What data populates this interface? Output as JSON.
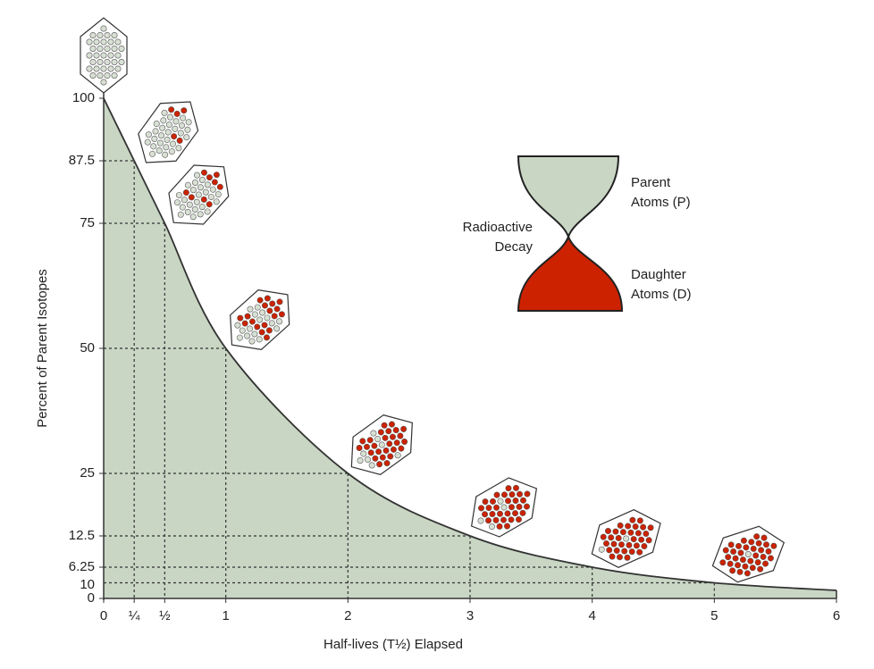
{
  "chart_data": {
    "type": "area",
    "x": [
      0,
      0.25,
      0.5,
      1,
      2,
      3,
      4,
      5,
      6
    ],
    "values": [
      100,
      87.5,
      75,
      50,
      25,
      12.5,
      6.25,
      3.125,
      1.6
    ],
    "color": "#c9d6c4",
    "xlim": [
      0,
      6
    ],
    "ylim": [
      0,
      100
    ],
    "xticks": [
      0,
      {
        "value": 0.25,
        "label": "¼"
      },
      {
        "value": 0.5,
        "label": "½"
      },
      1,
      2,
      3,
      4,
      5,
      6
    ],
    "yticks": [
      0,
      6.25,
      12.5,
      25,
      50,
      75,
      87.5,
      100
    ],
    "x_label": "Half-lives (T½) Elapsed",
    "y_label": "Percent of Parent Isotopes",
    "annotations": [
      "10"
    ],
    "hourglass": {
      "parent_lines": [
        "Parent",
        "Atoms (P)"
      ],
      "decay_lines": [
        "Radioactive",
        "Decay"
      ],
      "daughter_lines": [
        "Daughter",
        "Atoms (D)"
      ],
      "parent_color": "#c9d6c4",
      "daughter_color": "#cc2200"
    }
  }
}
